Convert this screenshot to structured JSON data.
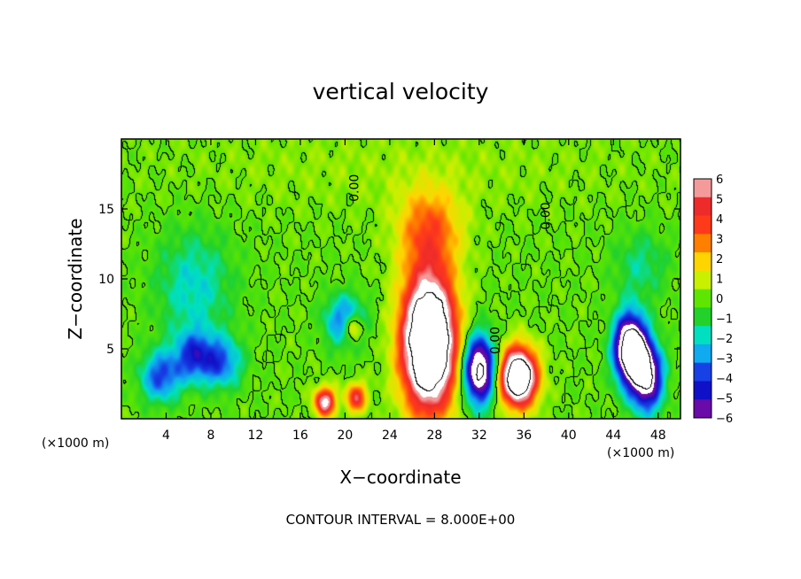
{
  "chart_data": {
    "type": "heatmap",
    "title": "vertical velocity",
    "xlabel": "X−coordinate",
    "ylabel": "Z−coordinate",
    "x_unit_left": "(×1000 m)",
    "x_unit_right": "(×1000 m)",
    "xlim": [
      0,
      50
    ],
    "ylim": [
      0,
      20
    ],
    "x_ticks": [
      4,
      8,
      12,
      16,
      20,
      24,
      28,
      32,
      36,
      40,
      44,
      48
    ],
    "y_ticks": [
      5,
      10,
      15
    ],
    "colorbar": {
      "levels": [
        -6,
        -5,
        -4,
        -3,
        -2,
        -1,
        0,
        1,
        2,
        3,
        4,
        5,
        6
      ],
      "labels": [
        "6",
        "5",
        "4",
        "3",
        "2",
        "1",
        "0",
        "−1",
        "−2",
        "−3",
        "−4",
        "−5",
        "−6"
      ],
      "colors": [
        "#f59a9a",
        "#ee2b2b",
        "#ff3a1a",
        "#ff7f00",
        "#ffd500",
        "#c8f000",
        "#5ee600",
        "#22d22a",
        "#00e0c0",
        "#10aaf0",
        "#1740e6",
        "#1010c8",
        "#6a0aa8"
      ]
    },
    "contour_labels": [
      "0.00",
      "0.00",
      "0.00"
    ],
    "contour_interval": "CONTOUR INTERVAL = 8.000E+00",
    "features": [
      {
        "kind": "updraft-core",
        "x": 27.5,
        "z": 5.5,
        "peak": 14
      },
      {
        "kind": "updraft",
        "x": 35.5,
        "z": 3.0,
        "peak": 12
      },
      {
        "kind": "updraft",
        "x": 18.2,
        "z": 1.2,
        "peak": 7
      },
      {
        "kind": "updraft",
        "x": 21.0,
        "z": 1.5,
        "peak": 5
      },
      {
        "kind": "updraft",
        "x": 20.7,
        "z": 6.5,
        "peak": 4
      },
      {
        "kind": "downdraft",
        "x": 45.5,
        "z": 5.0,
        "peak": -11
      },
      {
        "kind": "downdraft",
        "x": 47.0,
        "z": 3.0,
        "peak": -8
      },
      {
        "kind": "downdraft",
        "x": 32.0,
        "z": 3.5,
        "peak": -9
      },
      {
        "kind": "downdraft",
        "x": 6.5,
        "z": 4.5,
        "peak": -4
      },
      {
        "kind": "downdraft",
        "x": 3.5,
        "z": 3.0,
        "peak": -4
      },
      {
        "kind": "downdraft",
        "x": 9.0,
        "z": 4.0,
        "peak": -3.5
      },
      {
        "kind": "downdraft",
        "x": 20.0,
        "z": 7.0,
        "peak": -4
      }
    ]
  }
}
